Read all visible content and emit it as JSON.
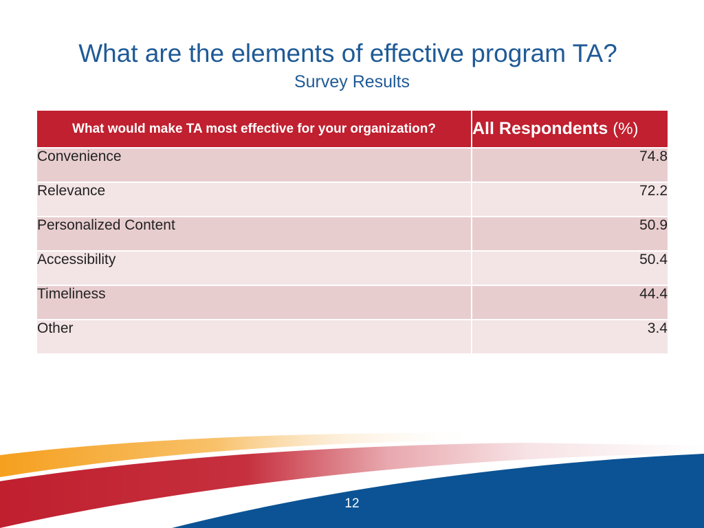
{
  "slide": {
    "title": "What are the elements of effective program TA?",
    "subtitle": "Survey Results",
    "page_number": "12"
  },
  "table": {
    "headers": {
      "question": "What would make TA most effective for your organization?",
      "respondents": "All Respondents",
      "respondents_unit": "(%)"
    },
    "rows": [
      {
        "label": "Convenience",
        "value": "74.8"
      },
      {
        "label": "Relevance",
        "value": "72.2"
      },
      {
        "label": "Personalized Content",
        "value": "50.9"
      },
      {
        "label": "Accessibility",
        "value": "50.4"
      },
      {
        "label": "Timeliness",
        "value": "44.4"
      },
      {
        "label": "Other",
        "value": "3.4"
      }
    ]
  },
  "colors": {
    "title": "#1f5a96",
    "header_red": "#c0202f",
    "row_dark": "#e8cdcf",
    "row_light": "#f3e4e5",
    "footer_blue": "#0b5394",
    "footer_orange": "#f5a623"
  }
}
